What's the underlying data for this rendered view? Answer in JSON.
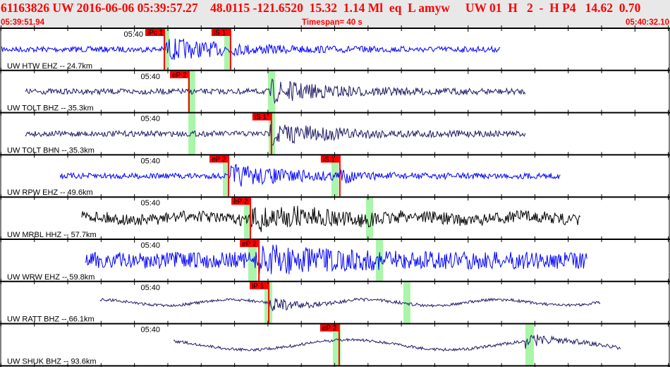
{
  "header": {
    "title": "61163826 UW 2016-06-06 05:39:57.27    48.0115 -121.6520  15.32  1.14 Ml  eq  L amyw     UW 01  H   2  -  H P4   14.62  0.70",
    "start_time": "05:39:51.94",
    "timespan": "Timespan=  40 s",
    "end_time": "05:40:32.10"
  },
  "time_axis": {
    "span_s": 40.16,
    "minute_label": "05:40",
    "minute_offset_s": 8.06
  },
  "colors": {
    "pick": "#ff0000",
    "window": "#aaf5aa",
    "blue": "#0000ff",
    "navy": "#1f1a66",
    "black": "#000000"
  },
  "channels": [
    {
      "label": "UW HTW EHZ -- 24.7km",
      "color": "blue",
      "trace": [
        0.1,
        30.0
      ],
      "onset": 9.9,
      "lowfreq": false,
      "picks": [
        {
          "label": "iPc 1",
          "t": 9.85
        },
        {
          "label": "iS 1",
          "t": 13.82
        }
      ],
      "windows": [
        [
          9.81,
          10.14
        ],
        [
          13.44,
          13.86
        ]
      ]
    },
    {
      "label": "UW TOLT BHZ -- 35.3km",
      "color": "navy",
      "trace": [
        1.5,
        31.5
      ],
      "onset": 16.2,
      "lowfreq": false,
      "picks": [
        {
          "label": "eP 2",
          "t": 11.33
        }
      ],
      "windows": [
        [
          11.24,
          11.7
        ],
        [
          16.06,
          16.5
        ]
      ]
    },
    {
      "label": "UW TOLT BHN -- 35.3km",
      "color": "navy",
      "trace": [
        1.5,
        31.5
      ],
      "onset": 16.2,
      "lowfreq": false,
      "picks": [
        {
          "label": "iS 1",
          "t": 16.27
        }
      ],
      "windows": [
        [
          11.29,
          11.71
        ],
        [
          16.1,
          16.49
        ]
      ]
    },
    {
      "label": "UW RPW EHZ -- 49.6km",
      "color": "blue",
      "trace": [
        3.6,
        33.6
      ],
      "onset": 13.8,
      "lowfreq": false,
      "picks": [
        {
          "label": "eP 2",
          "t": 13.7
        },
        {
          "label": "iS 1",
          "t": 20.37
        }
      ],
      "windows": [
        [
          13.36,
          13.7
        ],
        [
          19.87,
          20.29
        ]
      ]
    },
    {
      "label": "UW MRBL HHZ -- 57.7km",
      "color": "black",
      "trace": [
        4.9,
        34.8
      ],
      "onset": 15.0,
      "lowfreq": false,
      "picks": [
        {
          "label": "eP 2",
          "t": 15.01
        }
      ],
      "windows": [
        [
          14.63,
          15.01
        ],
        [
          21.94,
          22.37
        ]
      ]
    },
    {
      "label": "UW WRW EHZ -- 59.8km",
      "color": "blue",
      "trace": [
        5.1,
        35.2
      ],
      "onset": 15.5,
      "lowfreq": false,
      "picks": [
        {
          "label": "eP 2",
          "t": 15.52
        }
      ],
      "windows": [
        [
          14.88,
          15.39
        ],
        [
          22.53,
          22.96
        ]
      ]
    },
    {
      "label": "UW RATT BHZ -- 66.1km",
      "color": "navy",
      "trace": [
        6.0,
        36.0
      ],
      "onset": 16.1,
      "lowfreq": true,
      "picks": [
        {
          "label": "iP 1",
          "t": 16.11
        }
      ],
      "windows": [
        [
          15.85,
          16.32
        ],
        [
          24.18,
          24.6
        ]
      ]
    },
    {
      "label": "UW SHUK BHZ -- 93.6km",
      "color": "navy",
      "trace": [
        10.4,
        37.2
      ],
      "onset": 31.5,
      "lowfreq": true,
      "picks": [
        {
          "label": "eP 2",
          "t": 20.33
        }
      ],
      "windows": [
        [
          19.95,
          20.42
        ],
        [
          31.49,
          32.0
        ]
      ]
    }
  ]
}
